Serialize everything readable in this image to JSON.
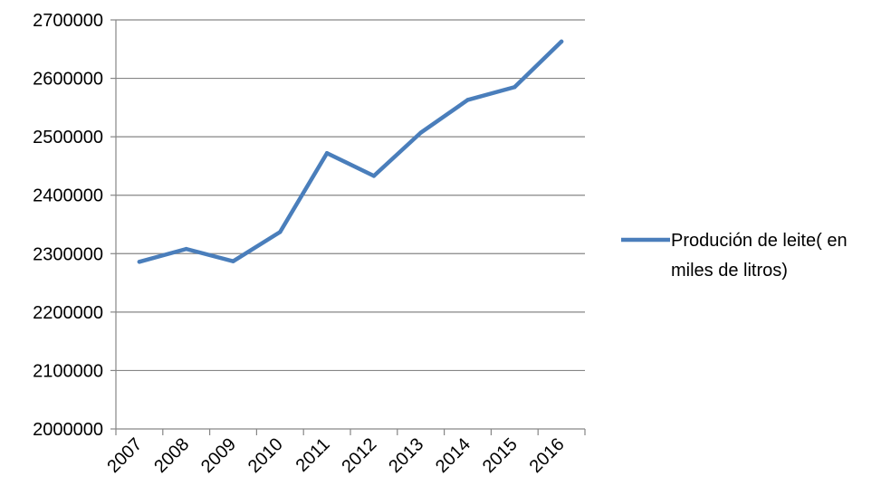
{
  "chart_data": {
    "type": "line",
    "categories": [
      "2007",
      "2008",
      "2009",
      "2010",
      "2011",
      "2012",
      "2013",
      "2014",
      "2015",
      "2016"
    ],
    "series": [
      {
        "name": "Produción de leite( en miles de litros)",
        "legend_lines": [
          "Produción de leite( en",
          "miles de litros)"
        ],
        "values": [
          2286000,
          2308000,
          2287000,
          2337000,
          2472000,
          2433000,
          2507000,
          2563000,
          2585000,
          2663000
        ],
        "color": "#4a7ebb"
      }
    ],
    "y_ticks": [
      "2000000",
      "2100000",
      "2200000",
      "2300000",
      "2400000",
      "2500000",
      "2600000",
      "2700000"
    ],
    "ylim": [
      2000000,
      2700000
    ],
    "grid": true,
    "legend_position": "right",
    "title": "",
    "xlabel": "",
    "ylabel": ""
  }
}
